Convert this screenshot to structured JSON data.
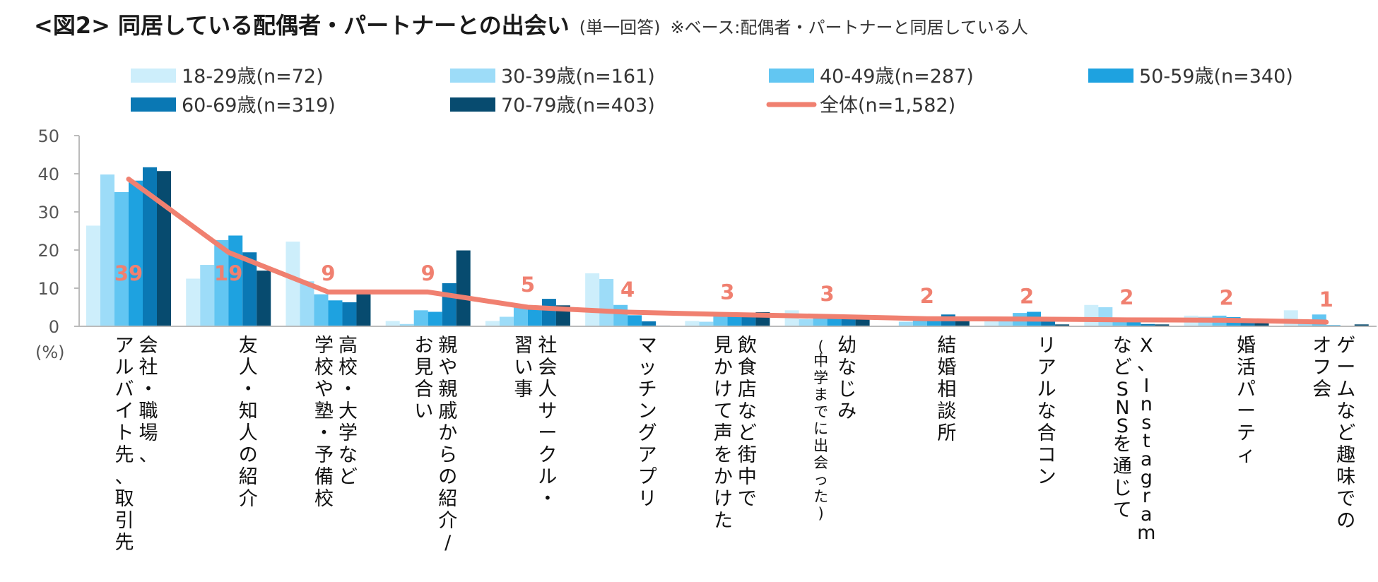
{
  "title": {
    "main": "<図2> 同居している配偶者・パートナーとの出会い",
    "sub": "(単一回答)",
    "base": "※ベース:配偶者・パートナーと同居している人"
  },
  "colors": {
    "series": [
      "#cdeefb",
      "#9ddcf8",
      "#62c6f2",
      "#1ea2e0",
      "#0a78b4",
      "#074b6f"
    ],
    "total": "#f08070",
    "axis": "#bbbbbb"
  },
  "chart_data": {
    "type": "bar",
    "unit_label": "(%)",
    "ylim": [
      0,
      50
    ],
    "yticks": [
      "0",
      "10",
      "20",
      "30",
      "40",
      "50"
    ],
    "categories": [
      {
        "lines": [
          "会社・職場、",
          "アルバイト先、取引先"
        ]
      },
      {
        "lines": [
          "友人・知人の紹介"
        ]
      },
      {
        "lines": [
          "高校・大学など",
          "学校や塾・予備校"
        ]
      },
      {
        "lines": [
          "親や親戚からの紹介/",
          "お見合い"
        ]
      },
      {
        "lines": [
          "社会人サークル・",
          "習い事"
        ]
      },
      {
        "lines": [
          "マッチングアプリ"
        ]
      },
      {
        "lines": [
          "飲食店など街中で",
          "見かけて声をかけた"
        ]
      },
      {
        "lines": [
          "幼なじみ",
          "(中学までに出会った)"
        ]
      },
      {
        "lines": [
          "結婚相談所"
        ]
      },
      {
        "lines": [
          "リアルな合コン"
        ]
      },
      {
        "lines": [
          "X、Instagram",
          "などSNSを通じて"
        ]
      },
      {
        "lines": [
          "婚活パーティ"
        ]
      },
      {
        "lines": [
          "ゲームなど趣味での",
          "オフ会"
        ]
      }
    ],
    "series": [
      {
        "name": "18-29歳(n=72)",
        "values": [
          26.4,
          12.5,
          22.2,
          1.4,
          1.4,
          13.9,
          1.4,
          4.2,
          0.0,
          1.4,
          5.6,
          2.8,
          4.2
        ]
      },
      {
        "name": "30-39歳(n=161)",
        "values": [
          39.8,
          16.1,
          11.8,
          0.6,
          2.5,
          12.4,
          1.2,
          1.9,
          1.2,
          1.9,
          5.0,
          2.5,
          1.2
        ]
      },
      {
        "name": "40-49歳(n=287)",
        "values": [
          35.2,
          22.6,
          8.4,
          4.2,
          4.9,
          5.6,
          2.8,
          2.1,
          2.1,
          3.5,
          1.7,
          2.8,
          3.1
        ]
      },
      {
        "name": "50-59歳(n=340)",
        "values": [
          38.2,
          23.8,
          6.8,
          3.8,
          5.0,
          2.9,
          3.2,
          2.6,
          2.4,
          3.8,
          1.2,
          2.4,
          0.3
        ]
      },
      {
        "name": "60-69歳(n=319)",
        "values": [
          41.7,
          19.4,
          6.3,
          11.3,
          7.2,
          1.3,
          3.1,
          2.8,
          3.1,
          1.6,
          0.6,
          1.6,
          0.0
        ]
      },
      {
        "name": "70-79歳(n=403)",
        "values": [
          40.7,
          14.6,
          8.9,
          19.9,
          5.5,
          0.2,
          3.7,
          2.6,
          2.0,
          0.5,
          0.5,
          1.5,
          0.5
        ]
      }
    ],
    "total": {
      "name": "全体(n=1,582)",
      "values": [
        38.6,
        19.4,
        9.0,
        9.0,
        5.0,
        3.7,
        3.1,
        2.6,
        2.0,
        1.9,
        1.7,
        1.6,
        1.1
      ],
      "labels": [
        "39",
        "19",
        "9",
        "9",
        "5",
        "4",
        "3",
        "3",
        "2",
        "2",
        "2",
        "2",
        "1"
      ]
    }
  }
}
